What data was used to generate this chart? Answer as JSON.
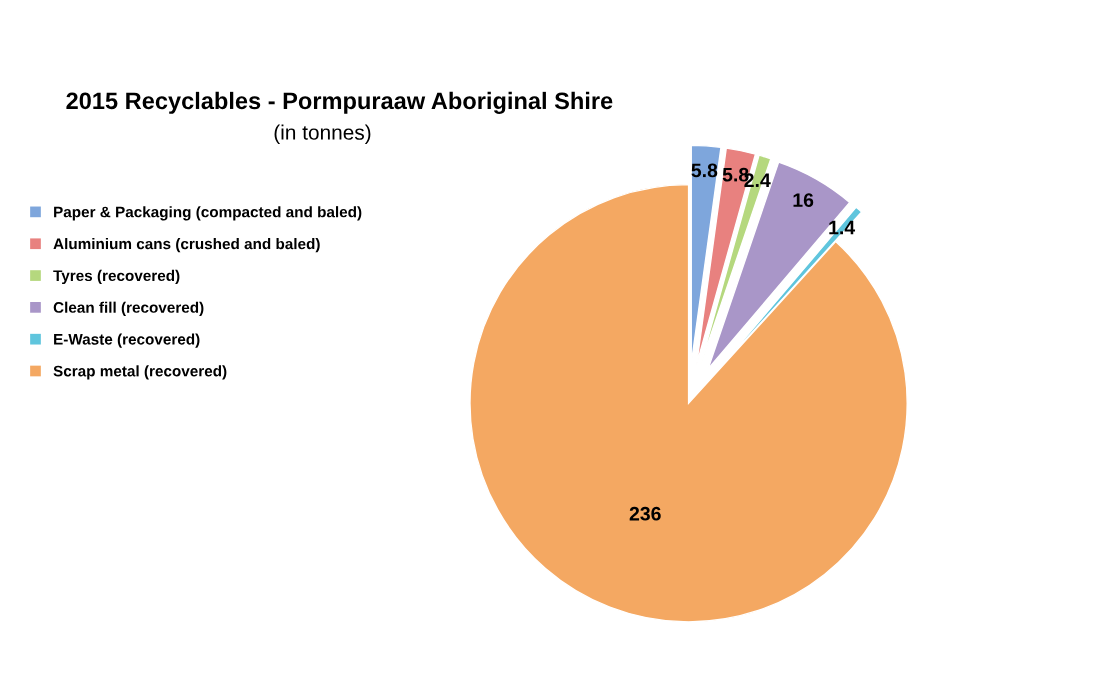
{
  "chart_data": {
    "type": "pie",
    "title": "2015 Recyclables - Pormpuraaw Aboriginal Shire",
    "subtitle": "(in tonnes)",
    "categories": [
      "Paper & Packaging (compacted and baled)",
      "Aluminium cans (crushed and baled)",
      "Tyres (recovered)",
      "Clean fill (recovered)",
      "E-Waste (recovered)",
      "Scrap metal (recovered)"
    ],
    "values": [
      5.8,
      5.8,
      2.4,
      16,
      1.4,
      236
    ],
    "colors": [
      "#7ea6dc",
      "#e8817f",
      "#b5d87e",
      "#a996c8",
      "#5fc5dd",
      "#f4a862"
    ],
    "data_labels": true,
    "legend": "left"
  }
}
